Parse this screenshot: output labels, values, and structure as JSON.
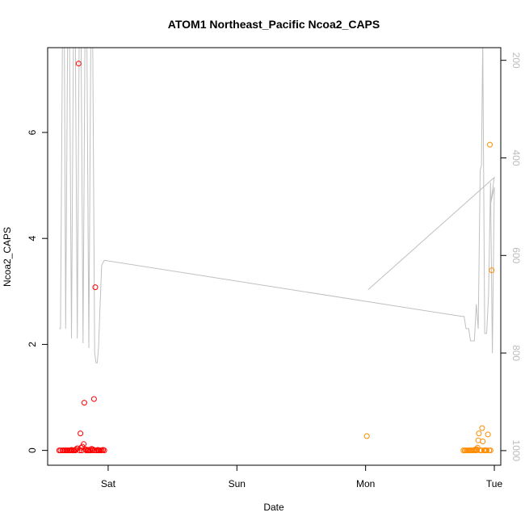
{
  "chart_data": {
    "type": "scatter",
    "title": "ATOM1 Northeast_Pacific Ncoa2_CAPS",
    "xlabel": "Date",
    "ylabel": "Ncoa2_CAPS",
    "x_ticks": [
      "Sat",
      "Sun",
      "Mon",
      "Tue"
    ],
    "x_tick_days": [
      1,
      2,
      3,
      4
    ],
    "xlim": [
      0.53,
      4.05
    ],
    "ylim": [
      -0.28,
      7.6
    ],
    "y_ticks": [
      0,
      2,
      4,
      6
    ],
    "y2_ticks": [
      200,
      400,
      600,
      800,
      1000
    ],
    "y2lim": [
      1030,
      174
    ],
    "grid": false,
    "colors": {
      "series1": "#ff0000",
      "series2": "#ff8c00",
      "depth_line": "#c0c0c0",
      "axis": "#000000",
      "right_axis": "#bbbbbb"
    },
    "series": [
      {
        "color": "#ff0000",
        "x": [
          0.62,
          0.63,
          0.645,
          0.655,
          0.665,
          0.675,
          0.685,
          0.695,
          0.705,
          0.715,
          0.72,
          0.73,
          0.735,
          0.745,
          0.75,
          0.76,
          0.77,
          0.78,
          0.785,
          0.79,
          0.795,
          0.8,
          0.81,
          0.815,
          0.825,
          0.83,
          0.84,
          0.845,
          0.85,
          0.86,
          0.87,
          0.875,
          0.88,
          0.89,
          0.895,
          0.9,
          0.91,
          0.92,
          0.925,
          0.93,
          0.94,
          0.95,
          0.96,
          0.97
        ],
        "y": [
          0,
          0,
          0,
          0,
          0,
          0,
          0,
          0,
          0,
          0.01,
          0,
          0,
          0,
          0,
          0.02,
          0.04,
          7.3,
          0,
          0.32,
          0.05,
          0,
          0.07,
          0.12,
          0.9,
          0.02,
          0,
          0,
          0.01,
          0,
          0,
          0.03,
          0,
          0.02,
          0.97,
          0,
          3.08,
          0,
          0.01,
          0,
          0,
          0,
          0,
          0.01,
          0
        ],
        "depth_profile": {
          "x": [
            0.62,
            0.63,
            0.645,
            0.66,
            0.67,
            0.685,
            0.7,
            0.715,
            0.73,
            0.745,
            0.76,
            0.775,
            0.79,
            0.805,
            0.82,
            0.835,
            0.85,
            0.865,
            0.88,
            0.895,
            0.905,
            0.915,
            0.925,
            0.935,
            0.95,
            0.97,
            3.75,
            3.765,
            3.78,
            3.8,
            3.815,
            3.83,
            3.845,
            3.86,
            3.875,
            3.89,
            3.9,
            3.91,
            3.925,
            3.94,
            3.955,
            3.97,
            3.985,
            4.0,
            3.97,
            4.0,
            3.02
          ],
          "y": [
            750,
            750,
            160,
            160,
            750,
            160,
            160,
            770,
            160,
            160,
            770,
            160,
            160,
            780,
            160,
            160,
            790,
            160,
            160,
            800,
            820,
            820,
            790,
            720,
            620,
            610,
            725,
            725,
            750,
            750,
            775,
            775,
            775,
            700,
            750,
            425,
            415,
            160,
            760,
            760,
            680,
            450,
            800,
            460,
            495,
            440,
            670
          ]
        }
      },
      {
        "color": "#ff8c00",
        "x": [
          3.01,
          3.76,
          3.77,
          3.78,
          3.79,
          3.8,
          3.81,
          3.815,
          3.82,
          3.83,
          3.84,
          3.85,
          3.855,
          3.86,
          3.865,
          3.87,
          3.875,
          3.88,
          3.89,
          3.895,
          3.9,
          3.905,
          3.91,
          3.92,
          3.925,
          3.93,
          3.94,
          3.95,
          3.96,
          3.965,
          3.97,
          3.98
        ],
        "y": [
          0.27,
          0,
          0,
          0,
          0,
          0,
          0,
          0,
          0,
          0,
          0,
          0,
          0.02,
          0,
          0.02,
          0.05,
          0.19,
          0.32,
          0,
          0,
          0,
          0.42,
          0.17,
          0,
          0,
          0,
          0,
          0.3,
          0,
          5.77,
          0,
          3.4
        ]
      }
    ]
  }
}
